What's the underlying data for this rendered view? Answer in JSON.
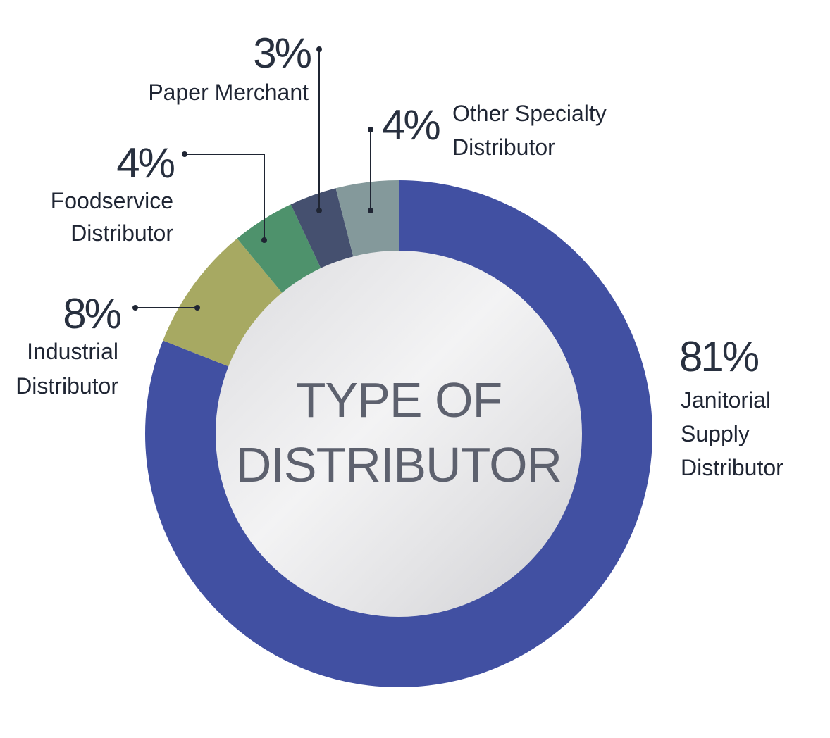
{
  "chart_data": {
    "type": "pie",
    "variant": "donut",
    "center_label": [
      "TYPE OF",
      "DISTRIBUTOR"
    ],
    "slices": [
      {
        "label": [
          "Janitorial",
          "Supply",
          "Distributor"
        ],
        "display": "81%",
        "value": 81,
        "color": "#4150a2"
      },
      {
        "label": [
          "Industrial",
          "Distributor"
        ],
        "display": "8%",
        "value": 8,
        "color": "#a7a962"
      },
      {
        "label": [
          "Foodservice",
          "Distributor"
        ],
        "display": "4%",
        "value": 4,
        "color": "#4e926c"
      },
      {
        "label": [
          "Paper Merchant"
        ],
        "display": "3%",
        "value": 3,
        "color": "#45506f"
      },
      {
        "label": [
          "Other Specialty",
          "Distributor"
        ],
        "display": "4%",
        "value": 4,
        "color": "#84999b"
      }
    ]
  }
}
